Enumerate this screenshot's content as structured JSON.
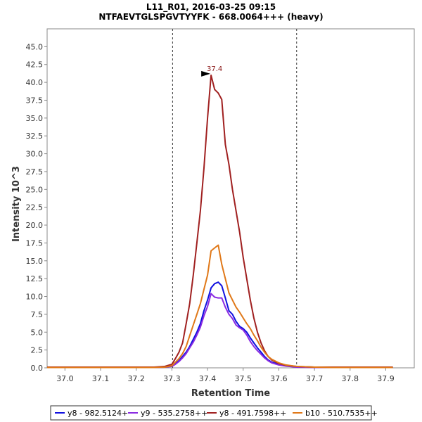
{
  "chart_data": {
    "type": "line",
    "title": [
      "L11_R01, 2016-03-25 09:15",
      "NTFAEVTGLSPGVTYYFK - 668.0064+++ (heavy)"
    ],
    "xlabel": "Retention Time",
    "ylabel": "Intensity 10^3",
    "xlim": [
      36.95,
      37.98
    ],
    "ylim": [
      0,
      47.5
    ],
    "xticks": [
      37.0,
      37.1,
      37.2,
      37.3,
      37.4,
      37.5,
      37.6,
      37.7,
      37.8,
      37.9
    ],
    "xtick_labels": [
      "37.0",
      "37.1",
      "37.2",
      "37.3",
      "37.4",
      "37.5",
      "37.6",
      "37.7",
      "37.8",
      "37.9"
    ],
    "yticks": [
      0,
      2.5,
      5,
      7.5,
      10,
      12.5,
      15,
      17.5,
      20,
      22.5,
      25,
      27.5,
      30,
      32.5,
      35,
      37.5,
      40,
      42.5,
      45
    ],
    "ytick_labels": [
      "0.0",
      "2.5",
      "5.0",
      "7.5",
      "10.0",
      "12.5",
      "15.0",
      "17.5",
      "20.0",
      "22.5",
      "25.0",
      "27.5",
      "30.0",
      "32.5",
      "35.0",
      "37.5",
      "40.0",
      "42.5",
      "45.0"
    ],
    "integration_bounds": [
      37.302,
      37.65
    ],
    "peak_annotation": {
      "label": "37.4",
      "x": 37.41,
      "y": 41.2,
      "color": "#8b1a1a"
    },
    "legend_position": "bottom",
    "series": [
      {
        "name": "y8 - 982.5124+",
        "color": "#1010e0",
        "x": [
          36.95,
          37.0,
          37.05,
          37.1,
          37.15,
          37.2,
          37.25,
          37.28,
          37.3,
          37.31,
          37.32,
          37.33,
          37.34,
          37.35,
          37.36,
          37.37,
          37.38,
          37.39,
          37.4,
          37.41,
          37.42,
          37.43,
          37.44,
          37.45,
          37.46,
          37.47,
          37.48,
          37.49,
          37.5,
          37.51,
          37.52,
          37.53,
          37.54,
          37.55,
          37.56,
          37.57,
          37.58,
          37.6,
          37.62,
          37.65,
          37.7,
          37.75,
          37.8,
          37.85,
          37.9,
          37.92
        ],
        "values": [
          0.1,
          0.1,
          0.1,
          0.1,
          0.05,
          0.05,
          0.05,
          0.1,
          0.3,
          0.6,
          1.0,
          1.6,
          2.2,
          3.0,
          4.0,
          5.0,
          6.2,
          8.0,
          9.5,
          11.2,
          11.8,
          12.0,
          11.5,
          9.8,
          8.0,
          7.5,
          6.5,
          5.8,
          5.5,
          5.0,
          4.2,
          3.5,
          2.8,
          2.2,
          1.6,
          1.1,
          0.8,
          0.5,
          0.3,
          0.15,
          0.1,
          0.05,
          0.05,
          0.05,
          0.05,
          0.05
        ]
      },
      {
        "name": "y9 - 535.2758++",
        "color": "#8a2be2",
        "x": [
          36.95,
          37.0,
          37.05,
          37.1,
          37.15,
          37.2,
          37.25,
          37.28,
          37.3,
          37.31,
          37.32,
          37.33,
          37.34,
          37.35,
          37.36,
          37.37,
          37.38,
          37.39,
          37.4,
          37.41,
          37.42,
          37.43,
          37.44,
          37.45,
          37.46,
          37.47,
          37.48,
          37.49,
          37.5,
          37.51,
          37.52,
          37.53,
          37.54,
          37.55,
          37.56,
          37.57,
          37.58,
          37.6,
          37.62,
          37.65,
          37.7,
          37.75,
          37.8,
          37.85,
          37.9,
          37.92
        ],
        "values": [
          0.05,
          0.05,
          0.05,
          0.05,
          0.05,
          0.05,
          0.05,
          0.1,
          0.2,
          0.5,
          0.9,
          1.4,
          2.0,
          2.8,
          3.6,
          4.6,
          5.7,
          7.3,
          8.6,
          10.4,
          9.9,
          9.8,
          9.8,
          8.5,
          7.5,
          6.9,
          6.0,
          5.6,
          5.3,
          4.6,
          3.7,
          3.0,
          2.4,
          1.9,
          1.4,
          1.0,
          0.7,
          0.4,
          0.25,
          0.1,
          0.05,
          0.05,
          0.05,
          0.05,
          0.05,
          0.05
        ]
      },
      {
        "name": "y8 - 491.7598++",
        "color": "#a02020",
        "x": [
          36.95,
          37.0,
          37.05,
          37.1,
          37.15,
          37.2,
          37.25,
          37.28,
          37.3,
          37.31,
          37.32,
          37.33,
          37.34,
          37.35,
          37.36,
          37.37,
          37.38,
          37.39,
          37.4,
          37.41,
          37.42,
          37.43,
          37.44,
          37.45,
          37.46,
          37.47,
          37.48,
          37.49,
          37.5,
          37.51,
          37.52,
          37.53,
          37.54,
          37.55,
          37.56,
          37.57,
          37.58,
          37.6,
          37.62,
          37.65,
          37.7,
          37.75,
          37.8,
          37.85,
          37.9,
          37.92
        ],
        "values": [
          0.1,
          0.1,
          0.1,
          0.1,
          0.1,
          0.1,
          0.1,
          0.2,
          0.5,
          1.3,
          2.2,
          3.5,
          6.2,
          9.0,
          13.0,
          17.5,
          22.0,
          28.0,
          35.0,
          41.0,
          39.0,
          38.5,
          37.6,
          31.3,
          28.5,
          25.0,
          22.0,
          19.0,
          15.5,
          12.5,
          9.5,
          7.0,
          5.0,
          3.5,
          2.4,
          1.6,
          1.1,
          0.6,
          0.35,
          0.2,
          0.1,
          0.1,
          0.1,
          0.1,
          0.1,
          0.1
        ]
      },
      {
        "name": "b10 - 510.7535++",
        "color": "#e07818",
        "x": [
          36.95,
          37.0,
          37.05,
          37.1,
          37.15,
          37.2,
          37.25,
          37.28,
          37.3,
          37.31,
          37.32,
          37.33,
          37.34,
          37.35,
          37.36,
          37.37,
          37.38,
          37.39,
          37.4,
          37.41,
          37.42,
          37.43,
          37.44,
          37.45,
          37.46,
          37.47,
          37.48,
          37.49,
          37.5,
          37.51,
          37.52,
          37.53,
          37.54,
          37.55,
          37.56,
          37.57,
          37.58,
          37.6,
          37.62,
          37.65,
          37.7,
          37.75,
          37.8,
          37.85,
          37.9,
          37.92
        ],
        "values": [
          0.05,
          0.05,
          0.05,
          0.05,
          0.05,
          0.05,
          0.05,
          0.1,
          0.3,
          0.8,
          1.3,
          2.0,
          3.0,
          4.5,
          6.0,
          7.5,
          9.0,
          11.0,
          13.0,
          16.4,
          16.8,
          17.2,
          14.5,
          12.5,
          10.5,
          9.5,
          8.5,
          7.8,
          7.0,
          6.2,
          5.5,
          4.6,
          3.8,
          2.9,
          2.2,
          1.6,
          1.2,
          0.7,
          0.4,
          0.2,
          0.1,
          0.05,
          0.05,
          0.05,
          0.05,
          0.05
        ]
      }
    ]
  }
}
